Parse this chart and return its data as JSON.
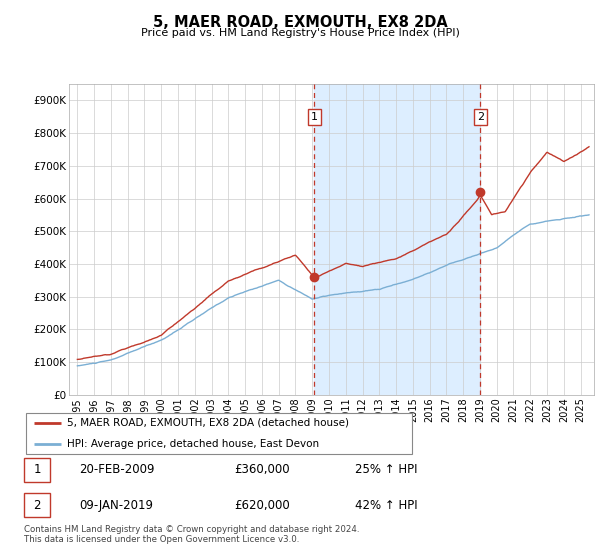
{
  "title": "5, MAER ROAD, EXMOUTH, EX8 2DA",
  "subtitle": "Price paid vs. HM Land Registry's House Price Index (HPI)",
  "ylabel_ticks": [
    "£0",
    "£100K",
    "£200K",
    "£300K",
    "£400K",
    "£500K",
    "£600K",
    "£700K",
    "£800K",
    "£900K"
  ],
  "ytick_values": [
    0,
    100000,
    200000,
    300000,
    400000,
    500000,
    600000,
    700000,
    800000,
    900000
  ],
  "ylim": [
    0,
    950000
  ],
  "xlim_start": 1994.5,
  "xlim_end": 2025.8,
  "xtick_years": [
    1995,
    1996,
    1997,
    1998,
    1999,
    2000,
    2001,
    2002,
    2003,
    2004,
    2005,
    2006,
    2007,
    2008,
    2009,
    2010,
    2011,
    2012,
    2013,
    2014,
    2015,
    2016,
    2017,
    2018,
    2019,
    2020,
    2021,
    2022,
    2023,
    2024,
    2025
  ],
  "sale1_x": 2009.13,
  "sale1_y": 360000,
  "sale2_x": 2019.03,
  "sale2_y": 620000,
  "legend_line1": "5, MAER ROAD, EXMOUTH, EX8 2DA (detached house)",
  "legend_line2": "HPI: Average price, detached house, East Devon",
  "hpi_color": "#7bafd4",
  "price_color": "#c0392b",
  "vline_color": "#c0392b",
  "shade_color": "#ddeeff",
  "background_color": "#ffffff",
  "grid_color": "#cccccc",
  "sale1_date": "20-FEB-2009",
  "sale1_price": "£360,000",
  "sale1_hpi": "25% ↑ HPI",
  "sale2_date": "09-JAN-2019",
  "sale2_price": "£620,000",
  "sale2_hpi": "42% ↑ HPI",
  "footnote1": "Contains HM Land Registry data © Crown copyright and database right 2024.",
  "footnote2": "This data is licensed under the Open Government Licence v3.0."
}
